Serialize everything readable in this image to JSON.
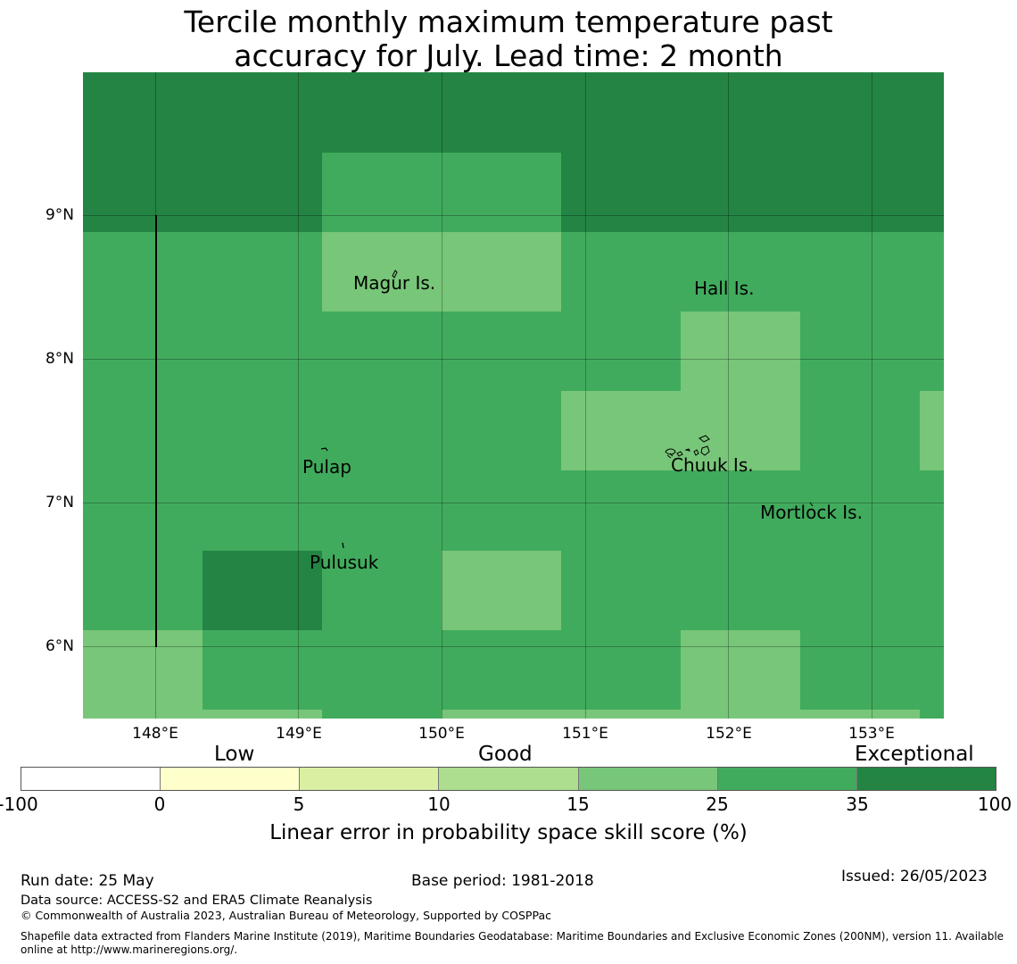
{
  "title": {
    "line1": "Tercile monthly maximum temperature past",
    "line2": "accuracy for July. Lead time: 2 month"
  },
  "map": {
    "lat_ticks": [
      "9°N",
      "8°N",
      "7°N",
      "6°N"
    ],
    "lon_ticks": [
      "148°E",
      "149°E",
      "150°E",
      "151°E",
      "152°E",
      "153°E"
    ],
    "places": [
      "Magur Is.",
      "Hall Is.",
      "Pulap",
      "Chuuk Is.",
      "Mortlock Is.",
      "Pulusuk"
    ],
    "skill_classes": {
      "good_light": "#78c679",
      "good": "#41ab5d",
      "exceptional": "#238443"
    }
  },
  "colorbar": {
    "categories": [
      "Low",
      "Good",
      "Exceptional"
    ],
    "ticks": [
      "-100",
      "0",
      "5",
      "10",
      "15",
      "25",
      "35",
      "100"
    ],
    "colors": [
      "#ffffff",
      "#ffffcc",
      "#d9f0a3",
      "#addd8e",
      "#78c679",
      "#41ab5d",
      "#238443"
    ],
    "label": "Linear error in probability space skill score (%)"
  },
  "footer": {
    "run_date": "Run date: 25 May",
    "base_period": "Base period: 1981-2018",
    "issued": "Issued: 26/05/2023",
    "data_source": "Data source: ACCESS-S2 and ERA5 Climate Reanalysis",
    "copyright": "© Commonwealth of Australia 2023, Australian Bureau of Meteorology, Supported by COSPPac",
    "shapefile": "Shapefile data extracted from Flanders Marine Institute (2019), Maritime Boundaries Geodatabase: Maritime Boundaries and Exclusive Economic Zones (200NM), version 11. Available online at http://www.marineregions.org/."
  }
}
